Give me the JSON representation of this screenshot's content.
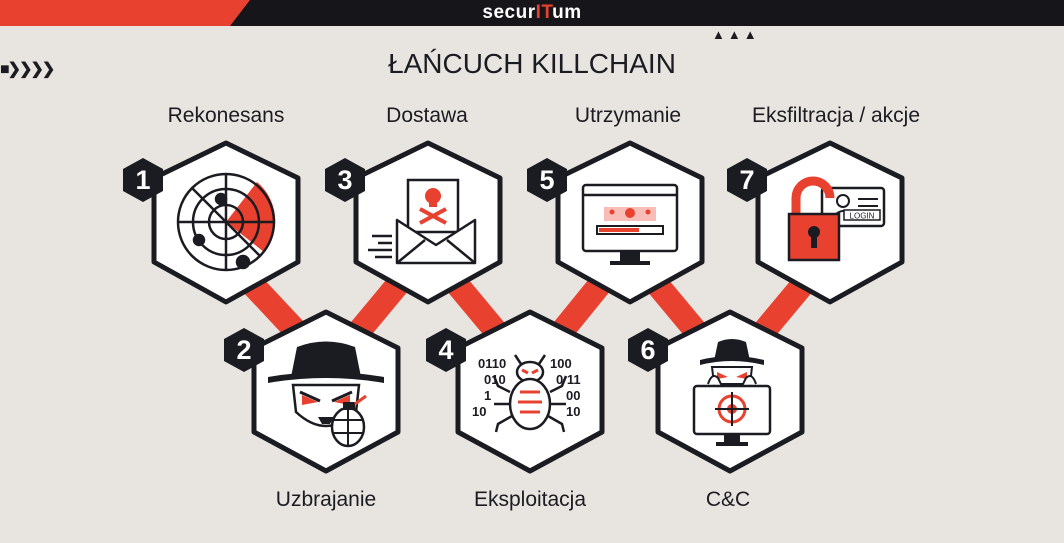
{
  "header": {
    "brand_prefix": "secur",
    "brand_mid": "IT",
    "brand_suffix": "um"
  },
  "title": "ŁAŃCUCH KILLCHAIN",
  "colors": {
    "accent": "#e8412f",
    "dark": "#1b1b22",
    "background": "#e8e5e0",
    "hex_fill": "#ffffff"
  },
  "stages": [
    {
      "number": "1",
      "label": "Rekonesans",
      "icon": "radar-icon"
    },
    {
      "number": "2",
      "label": "Uzbrajanie",
      "icon": "hacker-grenade-icon"
    },
    {
      "number": "3",
      "label": "Dostawa",
      "icon": "malicious-email-icon"
    },
    {
      "number": "4",
      "label": "Eksploitacja",
      "icon": "bug-binary-icon"
    },
    {
      "number": "5",
      "label": "Utrzymanie",
      "icon": "infected-monitor-icon"
    },
    {
      "number": "6",
      "label": "C&C",
      "icon": "hacker-target-monitor-icon"
    },
    {
      "number": "7",
      "label": "Eksfiltracja / akcje",
      "icon": "unlocked-login-icon"
    }
  ],
  "icons_text": {
    "binary_left": [
      "0110",
      "010",
      "1",
      "10"
    ],
    "binary_right": [
      "100",
      "0 11",
      "00",
      "10"
    ],
    "login": "LOGIN"
  }
}
